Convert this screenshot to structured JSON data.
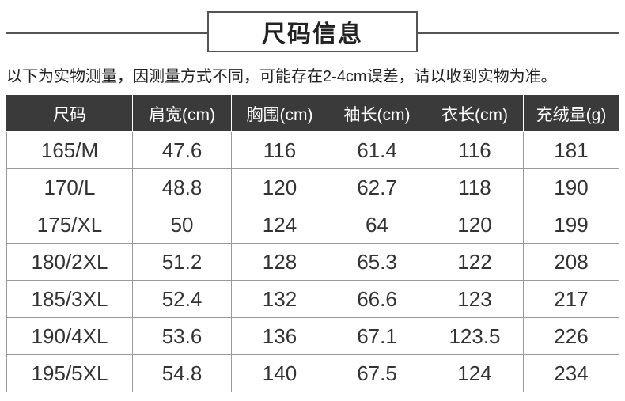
{
  "header": {
    "title": "尺码信息",
    "note": "以下为实物测量，因测量方式不同，可能存在2-4cm误差，请以收到实物为准。"
  },
  "table": {
    "columns": [
      "尺码",
      "肩宽(cm)",
      "胸围(cm)",
      "袖长(cm)",
      "衣长(cm)",
      "充绒量(g)"
    ],
    "rows": [
      [
        "165/M",
        47.6,
        116,
        61.4,
        116,
        181
      ],
      [
        "170/L",
        48.8,
        120,
        62.7,
        118,
        190
      ],
      [
        "175/XL",
        50,
        124,
        64,
        120,
        199
      ],
      [
        "180/2XL",
        51.2,
        128,
        65.3,
        122,
        208
      ],
      [
        "185/3XL",
        52.4,
        132,
        66.6,
        123,
        217
      ],
      [
        "190/4XL",
        53.6,
        136,
        67.1,
        123.5,
        226
      ],
      [
        "195/5XL",
        54.8,
        140,
        67.5,
        124,
        234
      ]
    ]
  }
}
